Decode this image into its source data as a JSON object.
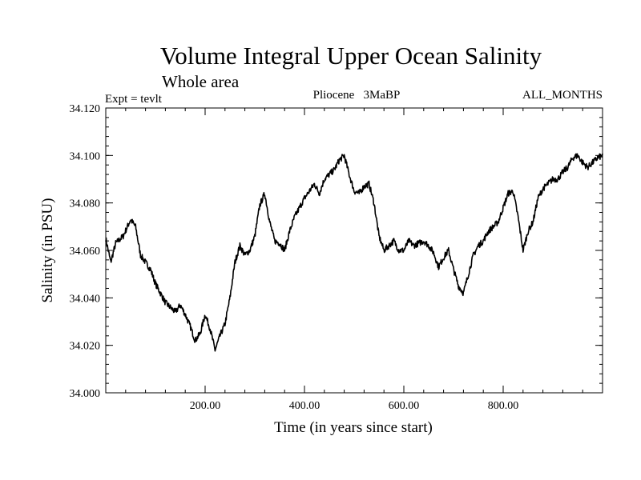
{
  "chart_data": {
    "type": "line",
    "title": "Volume Integral Upper Ocean Salinity",
    "subtitle": "Whole area",
    "annotations": {
      "left": "Expt = tevlt",
      "center": "Pliocene   3MaBP",
      "right": "ALL_MONTHS"
    },
    "xlabel": "Time (in years since start)",
    "ylabel": "Salinity (in PSU)",
    "xlim": [
      0,
      1000
    ],
    "ylim": [
      34.0,
      34.12
    ],
    "xticks": [
      200,
      400,
      600,
      800
    ],
    "xtick_labels": [
      "200.00",
      "400.00",
      "600.00",
      "800.00"
    ],
    "yticks": [
      34.0,
      34.02,
      34.04,
      34.06,
      34.08,
      34.1,
      34.12
    ],
    "ytick_labels": [
      "34.000",
      "34.020",
      "34.040",
      "34.060",
      "34.080",
      "34.100",
      "34.120"
    ],
    "grid": false,
    "line_color": "#000000",
    "series": [
      {
        "name": "salinity",
        "x": [
          0,
          10,
          20,
          35,
          50,
          60,
          70,
          80,
          90,
          100,
          110,
          120,
          130,
          140,
          150,
          160,
          170,
          180,
          190,
          200,
          210,
          220,
          230,
          240,
          250,
          260,
          270,
          280,
          290,
          300,
          310,
          320,
          330,
          340,
          350,
          360,
          370,
          380,
          390,
          400,
          410,
          420,
          430,
          440,
          450,
          460,
          470,
          480,
          490,
          500,
          510,
          520,
          530,
          540,
          550,
          560,
          570,
          580,
          590,
          600,
          610,
          620,
          630,
          640,
          650,
          660,
          670,
          680,
          690,
          700,
          710,
          720,
          730,
          740,
          750,
          760,
          770,
          780,
          790,
          800,
          810,
          820,
          830,
          840,
          850,
          860,
          870,
          880,
          890,
          900,
          910,
          920,
          930,
          940,
          950,
          960,
          970,
          980,
          990,
          1000
        ],
        "values": [
          34.065,
          34.055,
          34.063,
          34.066,
          34.073,
          34.07,
          34.058,
          34.055,
          34.052,
          34.046,
          34.042,
          34.038,
          34.036,
          34.034,
          34.037,
          34.033,
          34.028,
          34.022,
          34.025,
          34.033,
          34.027,
          34.018,
          34.024,
          34.029,
          34.04,
          34.055,
          34.062,
          34.058,
          34.06,
          34.066,
          34.079,
          34.084,
          34.072,
          34.064,
          34.063,
          34.06,
          34.068,
          34.074,
          34.078,
          34.082,
          34.085,
          34.088,
          34.084,
          34.09,
          34.092,
          34.094,
          34.098,
          34.1,
          34.092,
          34.085,
          34.084,
          34.087,
          34.088,
          34.08,
          34.066,
          34.06,
          34.062,
          34.064,
          34.06,
          34.06,
          34.064,
          34.062,
          34.063,
          34.064,
          34.062,
          34.059,
          34.053,
          34.057,
          34.06,
          34.052,
          34.045,
          34.042,
          34.05,
          34.058,
          34.062,
          34.064,
          34.068,
          34.07,
          34.072,
          34.078,
          34.084,
          34.085,
          34.074,
          34.06,
          34.068,
          34.072,
          34.082,
          34.086,
          34.088,
          34.09,
          34.09,
          34.093,
          34.095,
          34.099,
          34.1,
          34.097,
          34.095,
          34.097,
          34.099,
          34.1
        ]
      }
    ]
  }
}
